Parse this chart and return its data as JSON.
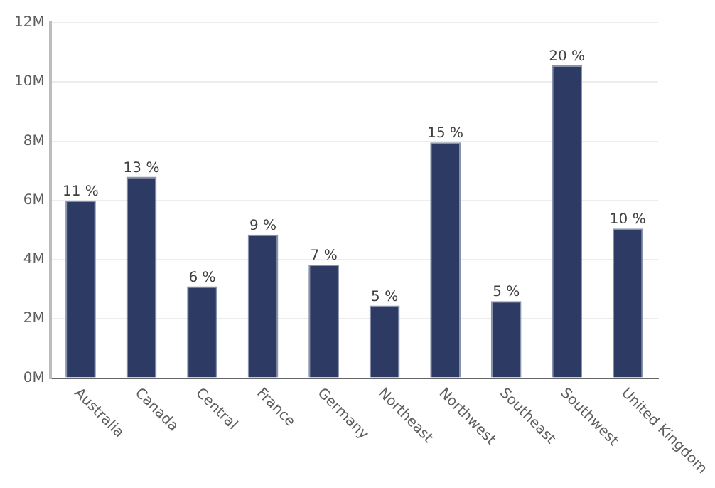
{
  "chart_data": {
    "type": "bar",
    "categories": [
      "Australia",
      "Canada",
      "Central",
      "France",
      "Germany",
      "Northeast",
      "Northwest",
      "Southeast",
      "Southwest",
      "United Kingdom"
    ],
    "values": [
      6.0,
      6.8,
      3.1,
      4.85,
      3.83,
      2.45,
      7.96,
      2.6,
      10.56,
      5.05
    ],
    "annotations": [
      {
        "text": "11 %",
        "x": "Australia",
        "y": 6.0
      },
      {
        "text": "13 %",
        "x": "Canada",
        "y": 6.8
      },
      {
        "text": "6 %",
        "x": "Central",
        "y": 3.1
      },
      {
        "text": "9 %",
        "x": "France",
        "y": 4.85
      },
      {
        "text": "7 %",
        "x": "Germany",
        "y": 3.83
      },
      {
        "text": "5 %",
        "x": "Northeast",
        "y": 2.45
      },
      {
        "text": "15 %",
        "x": "Northwest",
        "y": 7.96
      },
      {
        "text": "5 %",
        "x": "Southeast",
        "y": 2.6
      },
      {
        "text": "20 %",
        "x": "Southwest",
        "y": 10.56
      },
      {
        "text": "10 %",
        "x": "United Kingdom",
        "y": 5.05
      }
    ],
    "color": "#2c3a64",
    "ylim": [
      0,
      12
    ],
    "yticks": [
      {
        "value": 0,
        "label": "0M"
      },
      {
        "value": 2,
        "label": "2M"
      },
      {
        "value": 4,
        "label": "4M"
      },
      {
        "value": 6,
        "label": "6M"
      },
      {
        "value": 8,
        "label": "8M"
      },
      {
        "value": 10,
        "label": "10M"
      },
      {
        "value": 12,
        "label": "12M"
      }
    ],
    "grid": "y",
    "legend": false
  }
}
